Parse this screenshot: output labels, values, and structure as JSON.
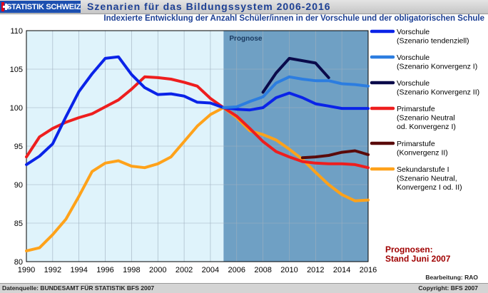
{
  "header": {
    "logo_text": "STATISTIK SCHWEIZ",
    "title": "Szenarien für das Bildungssystem 2006-2016"
  },
  "colors": {
    "header_blue": "#1c3f94",
    "actual_bg": "#dff3fb",
    "forecast_bg": "#6fa0c4",
    "note_red": "#a00000"
  },
  "chart_data": {
    "type": "line",
    "title": "Indexierte Entwicklung der Anzahl Schüler/innen in der Vorschule und der obligatorischen Schule",
    "xlabel": "",
    "ylabel": "",
    "xlim": [
      1990,
      2016
    ],
    "ylim": [
      80,
      110
    ],
    "xticks": [
      "1990",
      "1992",
      "1994",
      "1996",
      "1998",
      "2000",
      "2002",
      "2004",
      "2006",
      "2008",
      "2010",
      "2012",
      "2014",
      "2016"
    ],
    "yticks": [
      "80",
      "85",
      "90",
      "95",
      "100",
      "105",
      "110"
    ],
    "grid": true,
    "legend_position": "right",
    "forecast_region": {
      "from": 2005,
      "to": 2016,
      "label": "Prognose"
    },
    "series": [
      {
        "name": "Vorschule (Szenario tendenziell)",
        "legend_lines": [
          "Vorschule",
          "(Szenario tendenziell)"
        ],
        "color": "#0a23e8",
        "width": 4,
        "x": [
          1990,
          1991,
          1992,
          1993,
          1994,
          1995,
          1996,
          1997,
          1998,
          1999,
          2000,
          2001,
          2002,
          2003,
          2004,
          2005,
          2006,
          2007,
          2008,
          2009,
          2010,
          2011,
          2012,
          2013,
          2014,
          2015,
          2016
        ],
        "y": [
          92.6,
          93.7,
          95.3,
          98.8,
          102.1,
          104.4,
          106.4,
          106.6,
          104.3,
          102.6,
          101.7,
          101.8,
          101.5,
          100.7,
          100.6,
          100.0,
          99.8,
          99.7,
          100.0,
          101.3,
          101.9,
          101.3,
          100.5,
          100.2,
          99.9,
          99.9,
          99.9
        ]
      },
      {
        "name": "Vorschule (Szenario Konvergenz I)",
        "legend_lines": [
          "Vorschule",
          "(Szenario Konvergenz I)"
        ],
        "color": "#2c7de0",
        "width": 4,
        "x": [
          2005,
          2006,
          2007,
          2008,
          2009,
          2010,
          2011,
          2012,
          2013,
          2014,
          2015,
          2016
        ],
        "y": [
          100.0,
          100.1,
          100.8,
          101.4,
          103.2,
          104.0,
          103.7,
          103.5,
          103.5,
          103.1,
          103.0,
          102.8
        ]
      },
      {
        "name": "Vorschule (Szenario Konvergenz II)",
        "legend_lines": [
          "Vorschule",
          "(Szenario Konvergenz II)"
        ],
        "color": "#0a0a4a",
        "width": 4,
        "x": [
          2008,
          2009,
          2010,
          2011,
          2012,
          2013
        ],
        "y": [
          102.0,
          104.5,
          106.4,
          106.1,
          105.8,
          103.9
        ]
      },
      {
        "name": "Primarstufe (Szenario Neutral od. Konvergenz I)",
        "legend_lines": [
          "Primarstufe",
          "(Szenario Neutral",
          "od. Konvergenz I)"
        ],
        "color": "#ee1e1e",
        "width": 4,
        "x": [
          1990,
          1991,
          1992,
          1993,
          1994,
          1995,
          1996,
          1997,
          1998,
          1999,
          2000,
          2001,
          2002,
          2003,
          2004,
          2005,
          2006,
          2007,
          2008,
          2009,
          2010,
          2011,
          2012,
          2013,
          2014,
          2015,
          2016
        ],
        "y": [
          93.6,
          96.2,
          97.3,
          98.1,
          98.7,
          99.2,
          100.1,
          101.0,
          102.4,
          104.0,
          103.9,
          103.7,
          103.3,
          102.8,
          101.2,
          100.0,
          98.9,
          97.3,
          95.6,
          94.3,
          93.6,
          93.0,
          92.8,
          92.7,
          92.7,
          92.6,
          92.2
        ]
      },
      {
        "name": "Primarstufe (Konvergenz II)",
        "legend_lines": [
          "Primarstufe",
          "(Konvergenz II)"
        ],
        "color": "#5a0a0a",
        "width": 4,
        "x": [
          2011,
          2012,
          2013,
          2014,
          2015,
          2016
        ],
        "y": [
          93.5,
          93.6,
          93.8,
          94.2,
          94.4,
          93.9
        ]
      },
      {
        "name": "Sekundarstufe I (Szenario Neutral, Konvergenz I od. II)",
        "legend_lines": [
          "Sekundarstufe I",
          "(Szenario Neutral,",
          "Konvergenz I od. II)"
        ],
        "color": "#ffa21a",
        "width": 4,
        "x": [
          1990,
          1991,
          1992,
          1993,
          1994,
          1995,
          1996,
          1997,
          1998,
          1999,
          2000,
          2001,
          2002,
          2003,
          2004,
          2005,
          2006,
          2007,
          2008,
          2009,
          2010,
          2011,
          2012,
          2013,
          2014,
          2015,
          2016
        ],
        "y": [
          81.4,
          81.8,
          83.5,
          85.5,
          88.5,
          91.7,
          92.8,
          93.1,
          92.4,
          92.2,
          92.7,
          93.6,
          95.6,
          97.6,
          99.1,
          100.0,
          98.7,
          97.0,
          96.5,
          95.8,
          94.6,
          93.3,
          91.6,
          90.0,
          88.7,
          87.9,
          88.0
        ]
      }
    ]
  },
  "annotations": {
    "forecast_note_line1": "Prognosen:",
    "forecast_note_line2": "Stand Juni 2007"
  },
  "footer": {
    "bearbeitung": "Bearbeitung: RAO",
    "source": "Datenquelle: BUNDESAMT FÜR STATISTIK BFS 2007",
    "copyright": "Copyright:  BFS 2007"
  }
}
